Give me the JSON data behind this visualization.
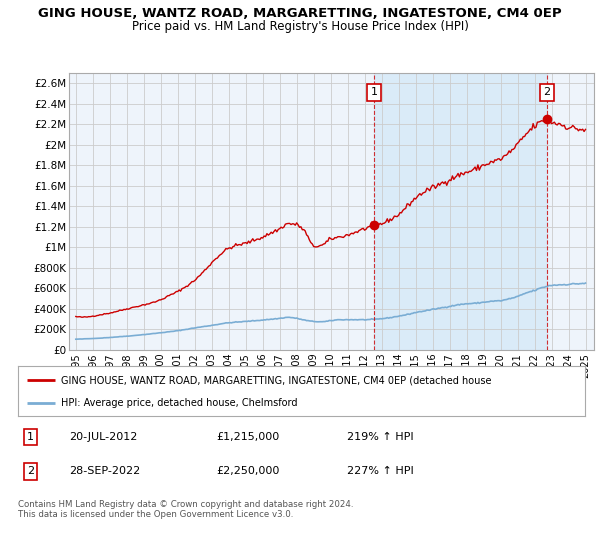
{
  "title": "GING HOUSE, WANTZ ROAD, MARGARETTING, INGATESTONE, CM4 0EP",
  "subtitle": "Price paid vs. HM Land Registry's House Price Index (HPI)",
  "title_fontsize": 9.5,
  "subtitle_fontsize": 8.5,
  "background_color": "#ffffff",
  "plot_bg_color": "#eef4fb",
  "grid_color": "#cccccc",
  "ylim": [
    0,
    2700000
  ],
  "yticks": [
    0,
    200000,
    400000,
    600000,
    800000,
    1000000,
    1200000,
    1400000,
    1600000,
    1800000,
    2000000,
    2200000,
    2400000,
    2600000
  ],
  "ytick_labels": [
    "£0",
    "£200K",
    "£400K",
    "£600K",
    "£800K",
    "£1M",
    "£1.2M",
    "£1.4M",
    "£1.6M",
    "£1.8M",
    "£2M",
    "£2.2M",
    "£2.4M",
    "£2.6M"
  ],
  "red_line_color": "#cc0000",
  "blue_line_color": "#7aadd4",
  "fill_color": "#d4e8f7",
  "marker_color": "#cc0000",
  "sale1_x": 2012.55,
  "sale1_y": 1215000,
  "sale1_label": "1",
  "sale2_x": 2022.73,
  "sale2_y": 2250000,
  "sale2_label": "2",
  "vline1_x": 2012.55,
  "vline2_x": 2022.73,
  "legend_red_label": "GING HOUSE, WANTZ ROAD, MARGARETTING, INGATESTONE, CM4 0EP (detached house",
  "legend_blue_label": "HPI: Average price, detached house, Chelmsford",
  "annotation1_date": "20-JUL-2012",
  "annotation1_price": "£1,215,000",
  "annotation1_hpi": "219% ↑ HPI",
  "annotation2_date": "28-SEP-2022",
  "annotation2_price": "£2,250,000",
  "annotation2_hpi": "227% ↑ HPI",
  "footer": "Contains HM Land Registry data © Crown copyright and database right 2024.\nThis data is licensed under the Open Government Licence v3.0.",
  "xlim_left": 1994.6,
  "xlim_right": 2025.5
}
